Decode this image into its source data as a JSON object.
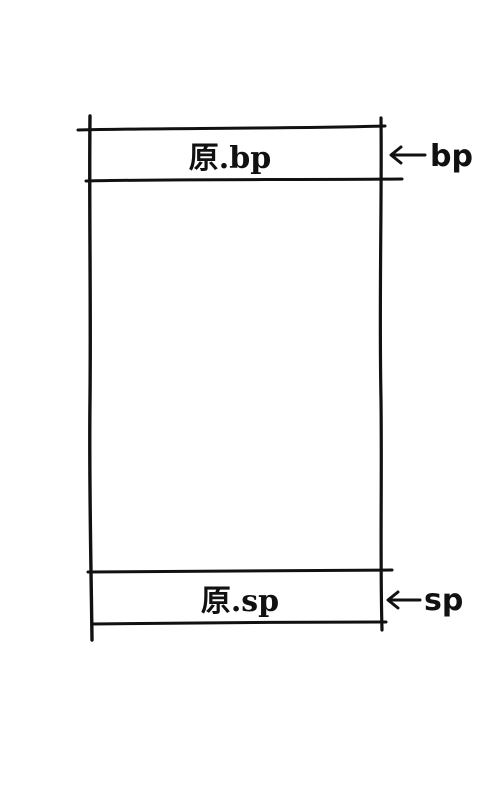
{
  "diagram": {
    "top_cell": {
      "label": "原.bp"
    },
    "bottom_cell": {
      "label": "原.sp"
    },
    "pointers": {
      "top": {
        "label": "bp"
      },
      "bottom": {
        "label": "sp"
      }
    },
    "ink_color": "#111111",
    "background_color": "#ffffff"
  }
}
